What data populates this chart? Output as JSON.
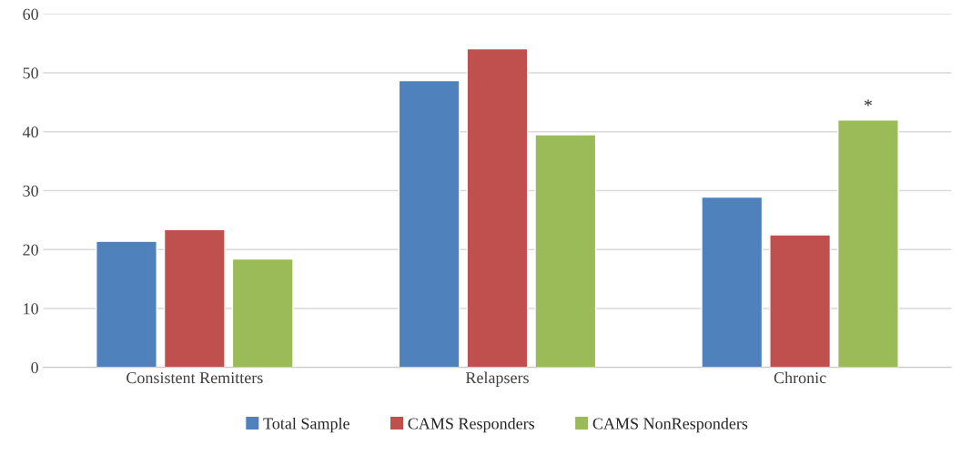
{
  "chart_data": {
    "type": "bar",
    "categories": [
      "Consistent Remitters",
      "Relapsers",
      "Chronic"
    ],
    "series": [
      {
        "name": "Total Sample",
        "color": "#4f81bd",
        "values": [
          21.4,
          48.7,
          28.9
        ]
      },
      {
        "name": "CAMS Responders",
        "color": "#c0504d",
        "values": [
          23.4,
          54.1,
          22.5
        ]
      },
      {
        "name": "CAMS NonResponders",
        "color": "#9bbb59",
        "values": [
          18.4,
          39.5,
          42.0
        ]
      }
    ],
    "ylim": [
      0,
      60
    ],
    "yticks": [
      0,
      10,
      20,
      30,
      40,
      50,
      60
    ],
    "grid": "y",
    "legend": "bottom",
    "annotations": [
      "*"
    ]
  }
}
